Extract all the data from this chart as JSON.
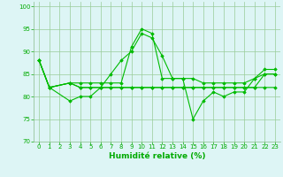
{
  "series": [
    {
      "x": [
        0,
        1,
        3,
        4,
        5,
        6,
        7,
        8,
        9,
        10,
        11,
        12,
        13,
        14,
        15,
        16,
        17,
        18,
        19,
        20,
        21,
        22,
        23
      ],
      "y": [
        88,
        82,
        83,
        83,
        83,
        83,
        83,
        83,
        91,
        95,
        94,
        84,
        84,
        84,
        84,
        83,
        83,
        83,
        83,
        83,
        84,
        85,
        85
      ]
    },
    {
      "x": [
        0,
        1,
        3,
        4,
        5,
        6,
        7,
        8,
        9,
        10,
        11,
        12,
        13,
        14,
        15,
        16,
        17,
        18,
        19,
        20,
        21,
        22,
        23
      ],
      "y": [
        88,
        82,
        79,
        80,
        80,
        82,
        85,
        88,
        90,
        94,
        93,
        89,
        84,
        84,
        75,
        79,
        81,
        80,
        81,
        81,
        84,
        86,
        86
      ]
    },
    {
      "x": [
        0,
        1,
        3,
        4,
        5,
        6,
        7,
        8,
        9,
        10,
        11,
        12,
        13,
        14,
        15,
        16,
        17,
        18,
        19,
        20,
        21,
        22,
        23
      ],
      "y": [
        88,
        82,
        83,
        82,
        82,
        82,
        82,
        82,
        82,
        82,
        82,
        82,
        82,
        82,
        82,
        82,
        82,
        82,
        82,
        82,
        82,
        82,
        82
      ]
    },
    {
      "x": [
        0,
        1,
        3,
        4,
        5,
        6,
        7,
        8,
        9,
        10,
        11,
        12,
        13,
        14,
        15,
        16,
        17,
        18,
        19,
        20,
        21,
        22,
        23
      ],
      "y": [
        88,
        82,
        83,
        82,
        82,
        82,
        82,
        82,
        82,
        82,
        82,
        82,
        82,
        82,
        82,
        82,
        82,
        82,
        82,
        82,
        82,
        85,
        85
      ]
    }
  ],
  "line_color": "#00BB00",
  "marker": "D",
  "markersize": 1.8,
  "linewidth": 0.8,
  "xlim": [
    -0.5,
    23.5
  ],
  "ylim": [
    70,
    101
  ],
  "yticks": [
    70,
    75,
    80,
    85,
    90,
    95,
    100
  ],
  "xticks": [
    0,
    1,
    2,
    3,
    4,
    5,
    6,
    7,
    8,
    9,
    10,
    11,
    12,
    13,
    14,
    15,
    16,
    17,
    18,
    19,
    20,
    21,
    22,
    23
  ],
  "xlabel": "Humidité relative (%)",
  "xlabel_color": "#00AA00",
  "xlabel_fontsize": 6.5,
  "tick_fontsize": 5.0,
  "grid_color": "#99cc99",
  "bg_color": "#ddf5f5",
  "tick_color": "#00AA00",
  "spine_color": "#88bb88"
}
